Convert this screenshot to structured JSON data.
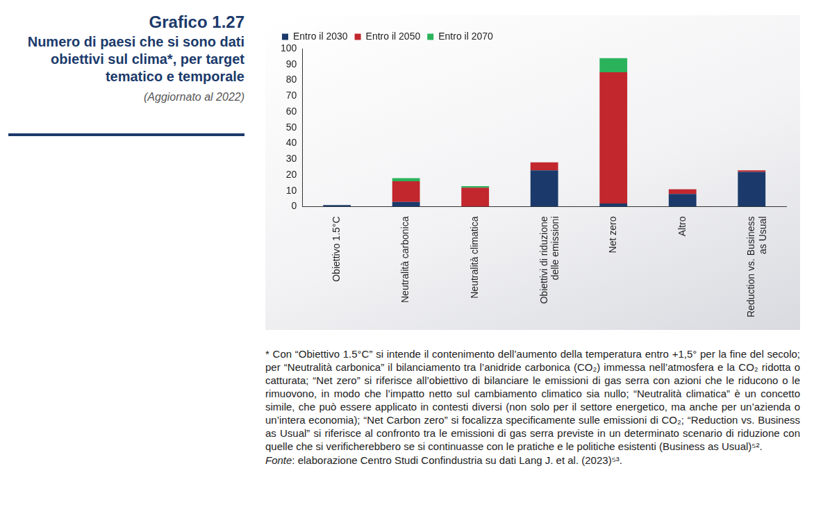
{
  "chart_data": {
    "type": "bar",
    "title": "Grafico 1.27",
    "subtitle": "Numero di paesi che si sono dati obiettivi sul clima*, per target tematico e temporale",
    "annotations": [
      "(Aggiornato al 2022)",
      "* Con “Obiettivo 1.5°C” si intende il contenimento dell’aumento della temperatura entro +1,5° per la fine del secolo; per “Neutralità carbonica” il bilanciamento tra l’anidride carbonica (CO₂) immessa nell’atmosfera e la CO₂ ridotta o catturata; “Net zero” si riferisce all’obiettivo di bilanciare le emissioni di gas serra con azioni che le riducono o le rimuovono, in modo che l’impatto netto sul cambiamento climatico sia nullo; “Neutralità climatica” è un concetto simile, che può essere applicato in contesti diversi (non solo per il settore energetico, ma anche per un’azienda o un’intera economia); “Net Carbon zero” si focalizza specificamente sulle emissioni di CO₂; “Reduction vs. Business as Usual” si riferisce al confronto tra le emissioni di gas serra previste in un determinato scenario di riduzione con quelle che si verificherebbero se si continuasse con le pratiche e le politiche esistenti (Business as Usual)⁵².",
      "Fonte: elaborazione Centro Studi Confindustria su dati Lang J. et al. (2023)⁵³."
    ],
    "categories": [
      "Obiettivo 1.5°C",
      "Neutralità carbonica",
      "Neutralità climatica",
      "Obiettivi di riduzione delle emissioni",
      "Net zero",
      "Altro",
      "Reduction vs. Business as Usual"
    ],
    "series": [
      {
        "name": "Entro il 2030",
        "color": "#1b3a6b",
        "values": [
          1,
          3,
          0,
          23,
          2,
          8,
          22
        ]
      },
      {
        "name": "Entro il 2050",
        "color": "#c1272d",
        "values": [
          0,
          13,
          12,
          5,
          83,
          3,
          1
        ]
      },
      {
        "name": "Entro il 2070",
        "color": "#2bb35c",
        "values": [
          0,
          2,
          1,
          0,
          9,
          0,
          0
        ]
      }
    ],
    "stacked": true,
    "ylim": [
      0,
      100
    ],
    "yticks": [
      0,
      10,
      20,
      30,
      40,
      50,
      60,
      70,
      80,
      90,
      100
    ],
    "grid": false,
    "legend": "top-left"
  }
}
